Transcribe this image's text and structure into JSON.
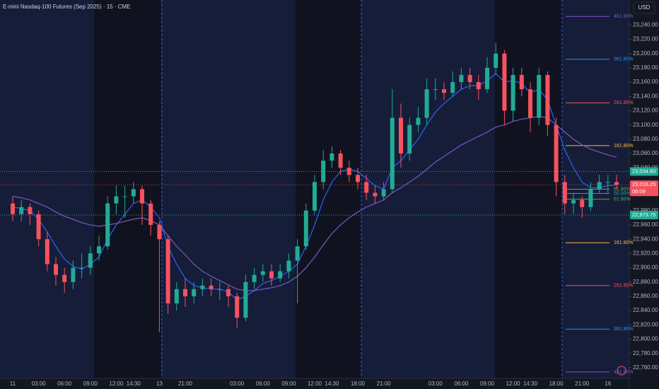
{
  "chart_data": {
    "type": "candlestick",
    "title": "E-mini Nasdaq-100 Futures (Sep 2025) · 15 · CME",
    "currency": "USD",
    "categories": [
      "11",
      null,
      null,
      "03:00",
      null,
      null,
      "06:00",
      null,
      null,
      "09:00",
      null,
      null,
      "12:00",
      null,
      "14:30",
      null,
      null,
      "13",
      null,
      null,
      "21:00",
      null,
      null,
      null,
      null,
      null,
      "03:00",
      null,
      null,
      "06:00",
      null,
      null,
      "09:00",
      null,
      null,
      "12:00",
      null,
      "14:30",
      null,
      null,
      "18:00",
      null,
      null,
      "21:00",
      null,
      null,
      null,
      null,
      null,
      "03:00",
      null,
      null,
      "06:00",
      null,
      null,
      "09:00",
      null,
      null,
      "12:00",
      null,
      "14:30",
      null,
      null,
      "18:00",
      null,
      null,
      "21:00",
      null,
      null,
      "16",
      null
    ],
    "open": [
      22990,
      22975,
      22985,
      22975,
      22940,
      22905,
      22890,
      22880,
      22900,
      22900,
      22920,
      22930,
      22990,
      23000,
      23000,
      23010,
      22990,
      22960,
      22940,
      22850,
      22870,
      22860,
      22870,
      22875,
      22870,
      22870,
      22860,
      22830,
      22880,
      22890,
      22895,
      22885,
      22895,
      22910,
      22930,
      22980,
      23020,
      23050,
      23060,
      23040,
      23030,
      23020,
      23005,
      23000,
      23010,
      23110,
      23060,
      23100,
      23110,
      23150,
      23150,
      23145,
      23160,
      23170,
      23160,
      23150,
      23180,
      23200,
      23120,
      23170,
      23150,
      23110,
      23170,
      23100,
      23020,
      22990,
      22995,
      22985,
      23010,
      23020,
      23020
    ],
    "high": [
      23000,
      22995,
      22990,
      22980,
      22950,
      22915,
      22900,
      22910,
      22920,
      22930,
      22945,
      23000,
      23015,
      23015,
      23020,
      23015,
      22995,
      22965,
      22945,
      22880,
      22885,
      22880,
      22885,
      22885,
      22880,
      22875,
      22865,
      22890,
      22900,
      22905,
      22905,
      22905,
      22920,
      22940,
      22990,
      23030,
      23065,
      23070,
      23065,
      23050,
      23040,
      23030,
      23015,
      23020,
      23150,
      23130,
      23110,
      23125,
      23165,
      23165,
      23160,
      23175,
      23180,
      23180,
      23170,
      23195,
      23215,
      23205,
      23180,
      23180,
      23160,
      23180,
      23175,
      23110,
      23030,
      23005,
      23000,
      23020,
      23030,
      23030,
      23030
    ],
    "low": [
      22965,
      22965,
      22960,
      22930,
      22895,
      22875,
      22865,
      22870,
      22885,
      22890,
      22910,
      22925,
      22975,
      22970,
      22990,
      22960,
      22945,
      22810,
      22835,
      22840,
      22845,
      22850,
      22860,
      22860,
      22855,
      22845,
      22815,
      22825,
      22870,
      22880,
      22875,
      22880,
      22885,
      22850,
      22925,
      22975,
      23010,
      23040,
      23030,
      23020,
      23010,
      22995,
      22990,
      22995,
      23005,
      23040,
      23050,
      23090,
      23100,
      23135,
      23135,
      23140,
      23150,
      23150,
      23135,
      23145,
      23170,
      23100,
      23105,
      23140,
      23090,
      23100,
      23085,
      23000,
      22975,
      22975,
      22970,
      22980,
      23005,
      23005,
      23010
    ],
    "close": [
      22975,
      22985,
      22975,
      22940,
      22905,
      22890,
      22880,
      22900,
      22900,
      22920,
      22930,
      22990,
      23000,
      23000,
      23010,
      22990,
      22960,
      22940,
      22850,
      22870,
      22860,
      22870,
      22875,
      22870,
      22870,
      22860,
      22830,
      22880,
      22890,
      22895,
      22885,
      22895,
      22910,
      22930,
      22980,
      23020,
      23050,
      23060,
      23040,
      23030,
      23020,
      23005,
      23000,
      23010,
      23110,
      23060,
      23100,
      23110,
      23150,
      23150,
      23145,
      23160,
      23170,
      23160,
      23150,
      23180,
      23200,
      23120,
      23170,
      23150,
      23110,
      23170,
      23100,
      23020,
      22990,
      22995,
      22985,
      23010,
      23020,
      23020,
      23016.25
    ],
    "up_color": "#22ab94",
    "down_color": "#f7525f",
    "series": [
      {
        "color": "#2962ff",
        "values": [
          22985,
          22983,
          22980,
          22968,
          22950,
          22930,
          22912,
          22902,
          22898,
          22905,
          22915,
          22940,
          22960,
          22975,
          22990,
          22995,
          22985,
          22970,
          22930,
          22905,
          22885,
          22875,
          22872,
          22870,
          22870,
          22866,
          22855,
          22860,
          22868,
          22878,
          22882,
          22888,
          22895,
          22905,
          22930,
          22960,
          22995,
          23020,
          23035,
          23038,
          23035,
          23025,
          23015,
          23010,
          23040,
          23050,
          23065,
          23080,
          23100,
          23118,
          23130,
          23140,
          23150,
          23155,
          23155,
          23162,
          23172,
          23160,
          23162,
          23158,
          23145,
          23150,
          23135,
          23100,
          23065,
          23040,
          23020,
          23012,
          23012,
          23015,
          23016
        ]
      },
      {
        "color": "#7e57c2",
        "values": [
          23000,
          22998,
          22995,
          22990,
          22985,
          22978,
          22972,
          22968,
          22963,
          22960,
          22958,
          22960,
          22962,
          22965,
          22968,
          22970,
          22966,
          22960,
          22945,
          22930,
          22918,
          22905,
          22895,
          22888,
          22882,
          22876,
          22870,
          22868,
          22868,
          22870,
          22872,
          22875,
          22880,
          22888,
          22900,
          22915,
          22932,
          22948,
          22960,
          22970,
          22978,
          22985,
          22990,
          22995,
          23005,
          23012,
          23020,
          23028,
          23038,
          23048,
          23056,
          23064,
          23072,
          23078,
          23084,
          23090,
          23097,
          23100,
          23105,
          23108,
          23110,
          23112,
          23110,
          23100,
          23090,
          23080,
          23072,
          23066,
          23062,
          23058,
          23055
        ]
      }
    ],
    "fib_levels": [
      {
        "label": "461.80%",
        "value": 23252,
        "color": "#7e57c2"
      },
      {
        "label": "361.80%",
        "value": 23192,
        "color": "#2196f3"
      },
      {
        "label": "261.80%",
        "value": 23131,
        "color": "#f7525f"
      },
      {
        "label": "161.80%",
        "value": 23071,
        "color": "#ffb74d"
      },
      {
        "label": "61.80%",
        "value": 23010,
        "color": "#4caf50"
      },
      {
        "label": "50.00%",
        "value": 23004,
        "color": "#26a69a"
      },
      {
        "label": "61.80%",
        "value": 22996,
        "color": "#4caf50"
      },
      {
        "label": "161.80%",
        "value": 22935,
        "color": "#ffb74d"
      },
      {
        "label": "261.80%",
        "value": 22875,
        "color": "#f7525f"
      },
      {
        "label": "361.80%",
        "value": 22814,
        "color": "#2196f3"
      },
      {
        "label": "461.80%",
        "value": 22754,
        "color": "#7e57c2"
      }
    ],
    "price_lines": [
      {
        "value": 23034.8,
        "label": "23,034.80",
        "color": "#22ab94"
      },
      {
        "value": 22973.75,
        "label": "22,973.75",
        "color": "#22ab94"
      }
    ],
    "last_price": {
      "value": 23016.25,
      "label": "23,016.25",
      "countdown": "06:09",
      "color": "#f7525f"
    },
    "ylim": [
      22745,
      23275
    ],
    "yticks": [
      {
        "value": 23240,
        "label": "23,240.00"
      },
      {
        "value": 23220,
        "label": "23,220.00"
      },
      {
        "value": 23200,
        "label": "23,200.00"
      },
      {
        "value": 23180,
        "label": "23,180.00"
      },
      {
        "value": 23160,
        "label": "23,160.00"
      },
      {
        "value": 23140,
        "label": "23,140.00"
      },
      {
        "value": 23120,
        "label": "23,120.00"
      },
      {
        "value": 23100,
        "label": "23,100.00"
      },
      {
        "value": 23080,
        "label": "23,080.00"
      },
      {
        "value": 23060,
        "label": "23,060.00"
      },
      {
        "value": 23040,
        "label": "23,040.00"
      },
      {
        "value": 22980,
        "label": "22,980.00"
      },
      {
        "value": 22960,
        "label": "22,960.00"
      },
      {
        "value": 22940,
        "label": "22,940.00"
      },
      {
        "value": 22920,
        "label": "22,920.00"
      },
      {
        "value": 22900,
        "label": "22,900.00"
      },
      {
        "value": 22880,
        "label": "22,880.00"
      },
      {
        "value": 22860,
        "label": "22,860.00"
      },
      {
        "value": 22840,
        "label": "22,840.00"
      },
      {
        "value": 22820,
        "label": "22,820.00"
      },
      {
        "value": 22800,
        "label": "22,800.00"
      },
      {
        "value": 22780,
        "label": "22,780.00"
      },
      {
        "value": 22760,
        "label": "22,760.00"
      }
    ]
  }
}
